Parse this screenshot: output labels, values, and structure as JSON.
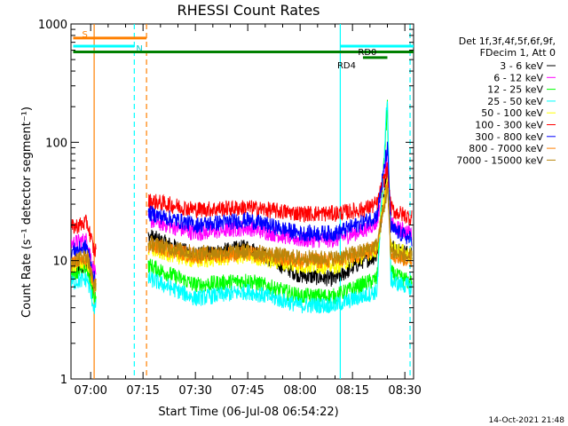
{
  "chart_data": {
    "type": "line",
    "title": "RHESSI Count Rates",
    "xlabel": "Start Time (06-Jul-08 06:54:22)",
    "ylabel": "Count Rate (s⁻¹ detector segment⁻¹)",
    "y_scale": "log",
    "ylim": [
      1,
      1000
    ],
    "xlim": [
      "06:54:22",
      "08:32:30"
    ],
    "x_ticks": [
      "07:00",
      "07:15",
      "07:30",
      "07:45",
      "08:00",
      "08:15",
      "08:30"
    ],
    "y_ticks": [
      "1",
      "10",
      "100",
      "1000"
    ],
    "grid": false,
    "legend_position": "right",
    "legend_header": [
      "Det 1f,3f,4f,5f,6f,9f,",
      "FDecim 1, Att 0"
    ],
    "series": [
      {
        "name": "3 - 6 keV",
        "color": "#000000",
        "x": [
          "06:54:30",
          "06:59:00",
          "07:01:00",
          "07:17:00",
          "07:30:00",
          "07:45:00",
          "08:00:00",
          "08:10:00",
          "08:18:00",
          "08:22:00",
          "08:25:00",
          "08:26:00",
          "08:27:00",
          "08:32:00"
        ],
        "y": [
          8.5,
          9,
          6,
          16,
          11,
          13,
          7.5,
          7,
          10,
          11,
          60,
          13,
          13,
          11
        ]
      },
      {
        "name": "6 - 12 keV",
        "color": "#ff00ff",
        "x": [
          "06:54:30",
          "06:59:00",
          "07:01:00",
          "07:17:00",
          "07:30:00",
          "07:45:00",
          "08:00:00",
          "08:10:00",
          "08:18:00",
          "08:22:00",
          "08:25:00",
          "08:26:00",
          "08:27:00",
          "08:32:00"
        ],
        "y": [
          14,
          15,
          8,
          22,
          17,
          19,
          15,
          15,
          18,
          21,
          80,
          21,
          19,
          17
        ]
      },
      {
        "name": "12 - 25 keV",
        "color": "#00ff00",
        "x": [
          "06:54:30",
          "06:59:00",
          "07:01:00",
          "07:17:00",
          "07:30:00",
          "07:45:00",
          "08:00:00",
          "08:10:00",
          "08:18:00",
          "08:22:00",
          "08:25:00",
          "08:26:00",
          "08:27:00",
          "08:32:00"
        ],
        "y": [
          8,
          8.5,
          5,
          9,
          6.2,
          6.8,
          5,
          5,
          6.3,
          7,
          200,
          8,
          7.5,
          6.5
        ]
      },
      {
        "name": "25 - 50 keV",
        "color": "#00ffff",
        "x": [
          "06:54:30",
          "06:59:00",
          "07:01:00",
          "07:17:00",
          "07:30:00",
          "07:45:00",
          "08:00:00",
          "08:10:00",
          "08:18:00",
          "08:22:00",
          "08:25:00",
          "08:26:00",
          "08:27:00",
          "08:32:00"
        ],
        "y": [
          6.5,
          7,
          4,
          7,
          4.8,
          5.5,
          4.2,
          4.2,
          5,
          5.5,
          250,
          7,
          6.5,
          6
        ]
      },
      {
        "name": "50 - 100 keV",
        "color": "#ffff00",
        "x": [
          "06:54:30",
          "06:59:00",
          "07:01:00",
          "07:17:00",
          "07:30:00",
          "07:45:00",
          "08:00:00",
          "08:10:00",
          "08:18:00",
          "08:22:00",
          "08:25:00",
          "08:26:00",
          "08:27:00",
          "08:32:00"
        ],
        "y": [
          9,
          10,
          6,
          12.5,
          10,
          11,
          9,
          9,
          11,
          12.5,
          50,
          13,
          12.5,
          11
        ]
      },
      {
        "name": "100 - 300 keV",
        "color": "#ff0000",
        "x": [
          "06:54:30",
          "06:59:00",
          "07:01:00",
          "07:17:00",
          "07:30:00",
          "07:45:00",
          "08:00:00",
          "08:10:00",
          "08:18:00",
          "08:22:00",
          "08:25:00",
          "08:26:00",
          "08:27:00",
          "08:32:00"
        ],
        "y": [
          19,
          21,
          12,
          32,
          27,
          28,
          25,
          25,
          27,
          30,
          60,
          28,
          26,
          23
        ]
      },
      {
        "name": "300 - 800 keV",
        "color": "#0000ff",
        "x": [
          "06:54:30",
          "06:59:00",
          "07:01:00",
          "07:17:00",
          "07:30:00",
          "07:45:00",
          "08:00:00",
          "08:10:00",
          "08:18:00",
          "08:22:00",
          "08:25:00",
          "08:26:00",
          "08:27:00",
          "08:32:00"
        ],
        "y": [
          12,
          13,
          7,
          25,
          20,
          22,
          17,
          17,
          21,
          24,
          90,
          19,
          18,
          15
        ]
      },
      {
        "name": "800 - 7000 keV",
        "color": "#ff8000",
        "x": [
          "06:54:30",
          "06:59:00",
          "07:01:00",
          "07:17:00",
          "07:30:00",
          "07:45:00",
          "08:00:00",
          "08:10:00",
          "08:18:00",
          "08:22:00",
          "08:25:00",
          "08:26:00",
          "08:27:00",
          "08:32:00"
        ],
        "y": [
          9.5,
          10.5,
          6,
          13.5,
          11,
          11.5,
          10,
          10,
          11.5,
          13,
          45,
          12,
          11,
          10
        ]
      },
      {
        "name": "7000 - 15000 keV",
        "color": "#b8860b",
        "x": [
          "06:54:30",
          "06:59:00",
          "07:01:00",
          "07:17:00",
          "07:30:00",
          "07:45:00",
          "08:00:00",
          "08:10:00",
          "08:18:00",
          "08:22:00",
          "08:25:00",
          "08:26:00",
          "08:27:00",
          "08:32:00"
        ],
        "y": [
          10,
          11,
          6,
          14,
          11.5,
          12,
          10.5,
          10.5,
          12,
          13.5,
          40,
          12.5,
          11.5,
          10.5
        ]
      }
    ],
    "vertical_markers": [
      {
        "time": "07:01:00",
        "color": "#ff8000",
        "style": "solid"
      },
      {
        "time": "07:12:30",
        "color": "#00ffff",
        "style": "dashed"
      },
      {
        "time": "07:16:00",
        "color": "#ff8000",
        "style": "dashed"
      },
      {
        "time": "08:11:30",
        "color": "#00ffff",
        "style": "solid"
      },
      {
        "time": "08:31:30",
        "color": "#00ffff",
        "style": "dashed"
      }
    ],
    "flag_bars": [
      {
        "label": "S",
        "color": "#ff8000",
        "y": 760,
        "start": "06:55:00",
        "end": "07:16:00"
      },
      {
        "label": "N",
        "color": "#00ffff",
        "y": 650,
        "start": "06:55:00",
        "end": "07:12:30"
      },
      {
        "label": "",
        "color": "#008000",
        "y": 580,
        "start": "06:55:00",
        "end": "08:32:30"
      },
      {
        "label": "RD0",
        "color": "#00ffff",
        "y": 650,
        "start": "08:11:30",
        "end": "08:32:30"
      },
      {
        "label": "RD4",
        "color": "#008000",
        "y": 520,
        "start": "08:18:00",
        "end": "08:25:00"
      }
    ]
  },
  "footer": {
    "date_stamp": "14-Oct-2021 21:48"
  }
}
